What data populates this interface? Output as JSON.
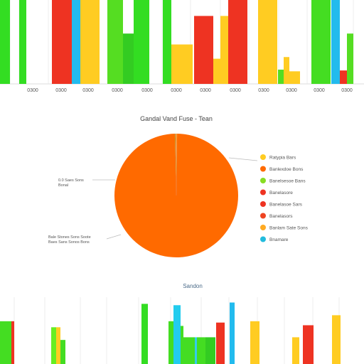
{
  "chart_data": [
    {
      "type": "bar",
      "name": "top-bar-chart",
      "categories": [
        "0300",
        "0300",
        "0300",
        "0300",
        "0300",
        "0300",
        "0300",
        "0300",
        "0300",
        "0300",
        "0300",
        "0300"
      ],
      "ylim": [
        0,
        100
      ],
      "grid": true,
      "bars": [
        {
          "x": 0.0,
          "w": 14,
          "value": 100,
          "color": "#33dd22"
        },
        {
          "x": 27,
          "w": 10,
          "value": 100,
          "color": "#33dd22"
        },
        {
          "x": 73,
          "w": 28,
          "value": 100,
          "color": "#ee3322"
        },
        {
          "x": 101,
          "w": 12,
          "value": 100,
          "color": "#22bbee"
        },
        {
          "x": 113,
          "w": 27,
          "value": 100,
          "color": "#ffcc22"
        },
        {
          "x": 151,
          "w": 22,
          "value": 100,
          "color": "#55dd22"
        },
        {
          "x": 173,
          "w": 15,
          "value": 60,
          "color": "#33cc22"
        },
        {
          "x": 188,
          "w": 22,
          "value": 100,
          "color": "#33dd22"
        },
        {
          "x": 229,
          "w": 12,
          "value": 100,
          "color": "#33dd22"
        },
        {
          "x": 241,
          "w": 30,
          "value": 47,
          "color": "#ffcc22"
        },
        {
          "x": 273,
          "w": 27,
          "value": 81,
          "color": "#ee3322"
        },
        {
          "x": 300,
          "w": 10,
          "value": 30,
          "color": "#ffcc22"
        },
        {
          "x": 310,
          "w": 11,
          "value": 81,
          "color": "#ffcc22"
        },
        {
          "x": 321,
          "w": 27,
          "value": 100,
          "color": "#ee3322"
        },
        {
          "x": 363,
          "w": 27,
          "value": 100,
          "color": "#ffcc22"
        },
        {
          "x": 391,
          "w": 8,
          "value": 17,
          "color": "#55dd22"
        },
        {
          "x": 399,
          "w": 8,
          "value": 32,
          "color": "#ffcc22"
        },
        {
          "x": 407,
          "w": 15,
          "value": 15,
          "color": "#ffcc22"
        },
        {
          "x": 438,
          "w": 27,
          "value": 100,
          "color": "#44dd22"
        },
        {
          "x": 466,
          "w": 12,
          "value": 100,
          "color": "#22bbee"
        },
        {
          "x": 478,
          "w": 18,
          "value": 16,
          "color": "#ee3322"
        },
        {
          "x": 488,
          "w": 9,
          "value": 60,
          "color": "#55dd22"
        }
      ]
    },
    {
      "type": "pie",
      "name": "pie-chart",
      "title": "Gandal Vand Fuse - Tean",
      "slices": [
        {
          "label": "Ratypia Bars",
          "value": 0.2,
          "color": "#ffcc22"
        },
        {
          "label": "Banlexdoe Bons",
          "value": 99.5,
          "color": "#ff6a00"
        },
        {
          "label": "Banelsesoe Bans",
          "value": 0.1,
          "color": "#88dd22"
        },
        {
          "label": "Banelasore",
          "value": 0.05,
          "color": "#ee3322"
        },
        {
          "label": "Banelasoe Sars",
          "value": 0.05,
          "color": "#ee3322"
        },
        {
          "label": "Banelasors",
          "value": 0.05,
          "color": "#ee4422"
        },
        {
          "label": "Banlam Sate Sons",
          "value": 0.03,
          "color": "#ffaa22"
        },
        {
          "label": "Bnamare",
          "value": 0.02,
          "color": "#22bbdd"
        }
      ],
      "callouts": [
        {
          "lines": [
            "0.0 Saes Sons",
            "Bonal"
          ]
        },
        {
          "lines": [
            "Bale Stones Sons Soote",
            "Baes Sans Sonos Bons"
          ]
        }
      ],
      "legend_position": "right"
    },
    {
      "type": "bar",
      "name": "bottom-bar-chart",
      "title": "Sandon",
      "ylim": [
        0,
        100
      ],
      "grid": true,
      "bars": [
        {
          "x": 0,
          "w": 16,
          "value": 64,
          "color": "#44dd22"
        },
        {
          "x": 16,
          "w": 4,
          "value": 64,
          "color": "#ee3322"
        },
        {
          "x": 72,
          "w": 7,
          "value": 32,
          "color": "#55dd22"
        },
        {
          "x": 72,
          "w": 7,
          "value": 55,
          "color": "#66ee22"
        },
        {
          "x": 79,
          "w": 6,
          "value": 55,
          "color": "#ffcc22"
        },
        {
          "x": 85,
          "w": 7,
          "value": 36,
          "color": "#44dd22"
        },
        {
          "x": 199,
          "w": 9,
          "value": 69,
          "color": "#55dd22"
        },
        {
          "x": 199,
          "w": 9,
          "value": 90,
          "color": "#33dd22"
        },
        {
          "x": 237,
          "w": 8,
          "value": 64,
          "color": "#44dd22"
        },
        {
          "x": 244,
          "w": 10,
          "value": 88,
          "color": "#22ccee"
        },
        {
          "x": 254,
          "w": 4,
          "value": 57,
          "color": "#44dd22"
        },
        {
          "x": 258,
          "w": 16,
          "value": 40,
          "color": "#44dd22"
        },
        {
          "x": 274,
          "w": 3,
          "value": 40,
          "color": "#33ccee"
        },
        {
          "x": 277,
          "w": 12,
          "value": 40,
          "color": "#44dd22"
        },
        {
          "x": 289,
          "w": 14,
          "value": 40,
          "color": "#33cc22"
        },
        {
          "x": 304,
          "w": 12,
          "value": 62,
          "color": "#ee3322"
        },
        {
          "x": 323,
          "w": 7,
          "value": 92,
          "color": "#22bbee"
        },
        {
          "x": 352,
          "w": 13,
          "value": 64,
          "color": "#ffcc22"
        },
        {
          "x": 411,
          "w": 10,
          "value": 40,
          "color": "#ffcc22"
        },
        {
          "x": 426,
          "w": 15,
          "value": 58,
          "color": "#ee3322"
        },
        {
          "x": 467,
          "w": 12,
          "value": 73,
          "color": "#ffcc22"
        }
      ]
    }
  ]
}
